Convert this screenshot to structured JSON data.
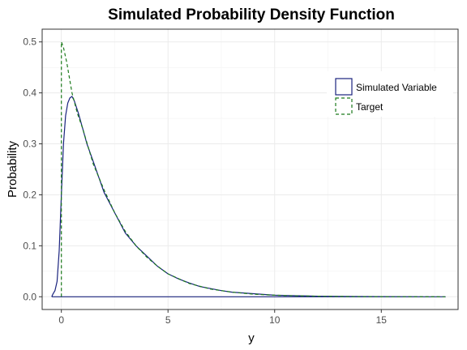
{
  "chart_data": {
    "type": "line",
    "title": "Simulated Probability Density Function",
    "xlabel": "y",
    "ylabel": "Probability",
    "xlim": [
      -0.9,
      18.6
    ],
    "ylim": [
      -0.025,
      0.525
    ],
    "xticks": [
      0,
      5,
      10,
      15
    ],
    "yticks": [
      0.0,
      0.1,
      0.2,
      0.3,
      0.4,
      0.5
    ],
    "xtick_labels": [
      "0",
      "5",
      "10",
      "15"
    ],
    "ytick_labels": [
      "0.0",
      "0.1",
      "0.2",
      "0.3",
      "0.4",
      "0.5"
    ],
    "grid": true,
    "legend_position": "top-right",
    "series": [
      {
        "name": "Simulated Variable",
        "color": "#1a237e",
        "dash": "solid",
        "x": [
          -0.45,
          -0.4,
          -0.3,
          -0.2,
          -0.1,
          0.0,
          0.1,
          0.2,
          0.3,
          0.4,
          0.5,
          0.6,
          0.8,
          1.0,
          1.2,
          1.5,
          2.0,
          2.5,
          3.0,
          3.5,
          4.0,
          4.5,
          5.0,
          5.5,
          6.0,
          6.5,
          7.0,
          7.5,
          8.0,
          9.0,
          10.0,
          11.0,
          12.0,
          13.0,
          14.0,
          15.0,
          16.0,
          17.0,
          18.0,
          18.0,
          -0.45
        ],
        "y": [
          0.0,
          0.005,
          0.012,
          0.03,
          0.09,
          0.2,
          0.3,
          0.355,
          0.38,
          0.39,
          0.393,
          0.385,
          0.36,
          0.33,
          0.3,
          0.265,
          0.205,
          0.165,
          0.125,
          0.1,
          0.08,
          0.06,
          0.045,
          0.035,
          0.027,
          0.02,
          0.016,
          0.012,
          0.009,
          0.006,
          0.003,
          0.002,
          0.001,
          0.0006,
          0.0004,
          0.0002,
          0.0001,
          0.0,
          0.0,
          0.0,
          0.0
        ]
      },
      {
        "name": "Target",
        "color": "#1b7a1b",
        "dash": "dashed",
        "x": [
          0.0,
          0.0,
          0.1,
          0.25,
          0.5,
          0.75,
          1.0,
          1.5,
          2.0,
          2.5,
          3.0,
          3.5,
          4.0,
          4.5,
          5.0,
          6.0,
          7.0,
          8.0,
          9.0,
          10.0,
          11.0,
          12.0,
          14.0,
          16.0,
          18.0
        ],
        "y": [
          0.0,
          0.5,
          0.489,
          0.46,
          0.4,
          0.36,
          0.33,
          0.26,
          0.21,
          0.165,
          0.128,
          0.1,
          0.078,
          0.06,
          0.045,
          0.026,
          0.015,
          0.009,
          0.005,
          0.003,
          0.0017,
          0.001,
          0.0003,
          0.0001,
          0.0
        ]
      }
    ]
  }
}
